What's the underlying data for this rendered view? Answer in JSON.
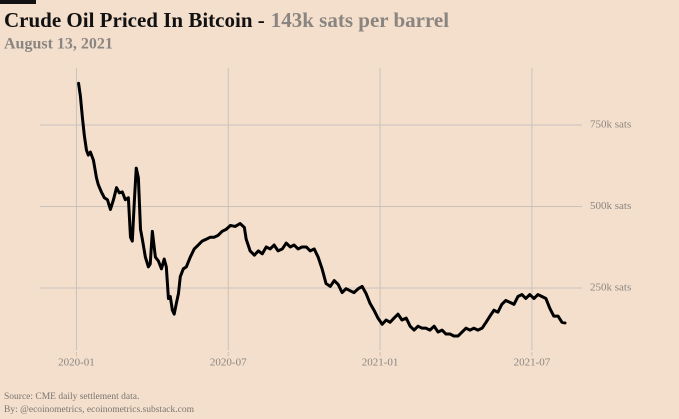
{
  "chart_data": {
    "type": "line",
    "title": "Crude Oil Priced In Bitcoin -",
    "title_value": "143k sats per barrel",
    "subtitle": "August 13, 2021",
    "source": "Source: CME daily settlement data.",
    "byline": "By: @ecoinometrics, ecoinometrics.substack.com",
    "color": "#000000",
    "grid": true,
    "xlim": [
      2019.88,
      2021.665
    ],
    "xticks": [
      {
        "value": 2020.0,
        "label": "2020-01"
      },
      {
        "value": 2020.5,
        "label": "2020-07"
      },
      {
        "value": 2021.0,
        "label": "2021-01"
      },
      {
        "value": 2021.5,
        "label": "2021-07"
      }
    ],
    "ylim": [
      60000,
      925000
    ],
    "yticks": [
      {
        "value": 250000,
        "label": "250k sats"
      },
      {
        "value": 500000,
        "label": "500k sats"
      },
      {
        "value": 750000,
        "label": "750k sats"
      }
    ],
    "x": [
      2020.007,
      2020.013,
      2020.02,
      2020.026,
      2020.033,
      2020.039,
      2020.046,
      2020.056,
      2020.066,
      2020.072,
      2020.082,
      2020.092,
      2020.102,
      2020.112,
      2020.122,
      2020.132,
      2020.141,
      2020.151,
      2020.161,
      2020.171,
      2020.178,
      2020.184,
      2020.191,
      2020.197,
      2020.204,
      2020.211,
      2020.217,
      2020.227,
      2020.237,
      2020.243,
      2020.25,
      2020.26,
      2020.27,
      2020.28,
      2020.289,
      2020.296,
      2020.303,
      2020.309,
      2020.316,
      2020.322,
      2020.329,
      2020.336,
      2020.342,
      2020.352,
      2020.362,
      2020.375,
      2020.388,
      2020.401,
      2020.414,
      2020.428,
      2020.441,
      2020.454,
      2020.467,
      2020.48,
      2020.493,
      2020.507,
      2020.523,
      2020.539,
      2020.553,
      2020.559,
      2020.572,
      2020.586,
      2020.599,
      2020.612,
      2020.625,
      2020.638,
      2020.651,
      2020.664,
      2020.678,
      2020.691,
      2020.704,
      2020.717,
      2020.73,
      2020.743,
      2020.757,
      2020.77,
      2020.783,
      2020.796,
      2020.809,
      2020.822,
      2020.836,
      2020.849,
      2020.862,
      2020.875,
      2020.888,
      2020.901,
      2020.914,
      2020.928,
      2020.941,
      2020.954,
      2020.967,
      2020.98,
      2020.993,
      2021.007,
      2021.02,
      2021.033,
      2021.046,
      2021.059,
      2021.072,
      2021.086,
      2021.099,
      2021.112,
      2021.125,
      2021.138,
      2021.151,
      2021.164,
      2021.178,
      2021.191,
      2021.204,
      2021.217,
      2021.23,
      2021.243,
      2021.257,
      2021.27,
      2021.283,
      2021.296,
      2021.309,
      2021.322,
      2021.336,
      2021.349,
      2021.362,
      2021.375,
      2021.388,
      2021.401,
      2021.414,
      2021.428,
      2021.441,
      2021.454,
      2021.467,
      2021.48,
      2021.493,
      2021.507,
      2021.52,
      2021.533,
      2021.546,
      2021.559,
      2021.572,
      2021.586,
      2021.599,
      2021.609
    ],
    "values": [
      878000,
      839000,
      770000,
      718000,
      673000,
      658000,
      667000,
      642000,
      588000,
      567000,
      545000,
      527000,
      521000,
      491000,
      521000,
      558000,
      542000,
      545000,
      521000,
      527000,
      406000,
      394000,
      521000,
      618000,
      588000,
      430000,
      400000,
      345000,
      315000,
      324000,
      424000,
      345000,
      333000,
      309000,
      339000,
      315000,
      218000,
      224000,
      182000,
      170000,
      203000,
      233000,
      285000,
      309000,
      315000,
      345000,
      370000,
      382000,
      394000,
      400000,
      406000,
      406000,
      412000,
      424000,
      430000,
      442000,
      439000,
      448000,
      436000,
      400000,
      364000,
      351000,
      364000,
      355000,
      376000,
      370000,
      382000,
      364000,
      370000,
      388000,
      376000,
      382000,
      370000,
      376000,
      376000,
      364000,
      370000,
      345000,
      309000,
      264000,
      255000,
      273000,
      261000,
      236000,
      248000,
      242000,
      236000,
      248000,
      255000,
      233000,
      203000,
      182000,
      158000,
      139000,
      152000,
      145000,
      158000,
      170000,
      152000,
      158000,
      133000,
      121000,
      133000,
      127000,
      127000,
      121000,
      133000,
      115000,
      121000,
      109000,
      109000,
      103000,
      103000,
      115000,
      127000,
      121000,
      127000,
      121000,
      127000,
      145000,
      164000,
      182000,
      176000,
      200000,
      212000,
      206000,
      200000,
      224000,
      230000,
      218000,
      230000,
      218000,
      230000,
      224000,
      218000,
      188000,
      164000,
      164000,
      145000,
      143000
    ]
  }
}
